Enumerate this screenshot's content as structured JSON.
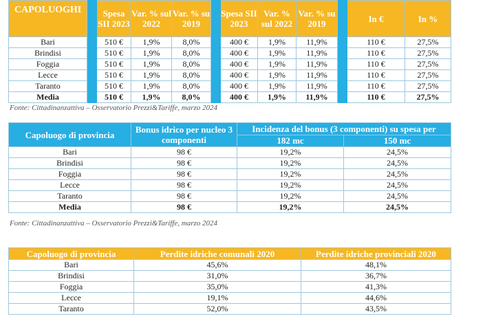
{
  "table1": {
    "headers": {
      "capoluoghi": "CAPOLUOGHI",
      "spesa2023": "Spesa SII 2023",
      "var2022": "Var. % sul 2022",
      "var2019": "Var. % su 2019",
      "spesa2023b": "Spesa SII 2023",
      "var2022b": "Var. % sul 2022",
      "var2019b": "Var. % su 2019",
      "in_euro": "In €",
      "in_pct": "In %"
    },
    "rows": [
      [
        "Bari",
        "510 €",
        "1,9%",
        "8,0%",
        "400 €",
        "1,9%",
        "11,9%",
        "110 €",
        "27,5%"
      ],
      [
        "Brindisi",
        "510 €",
        "1,9%",
        "8,0%",
        "400 €",
        "1,9%",
        "11,9%",
        "110 €",
        "27,5%"
      ],
      [
        "Foggia",
        "510 €",
        "1,9%",
        "8,0%",
        "400 €",
        "1,9%",
        "11,9%",
        "110 €",
        "27,5%"
      ],
      [
        "Lecce",
        "510 €",
        "1,9%",
        "8,0%",
        "400 €",
        "1,9%",
        "11,9%",
        "110 €",
        "27,5%"
      ],
      [
        "Taranto",
        "510 €",
        "1,9%",
        "8,0%",
        "400 €",
        "1,9%",
        "11,9%",
        "110 €",
        "27,5%"
      ],
      [
        "Media",
        "510 €",
        "1,9%",
        "8,0%",
        "400 €",
        "1,9%",
        "11,9%",
        "110 €",
        "27,5%"
      ]
    ],
    "source": "Fonte: Cittadinanzattiva – Osservatorio Prezzi&Tariffe, marzo 2024"
  },
  "table2": {
    "headers": {
      "capoluogo": "Capoluogo di provincia",
      "bonus": "Bonus idrico per nucleo 3 componenti",
      "incidenza": "Incidenza del bonus (3 componenti) su spesa per",
      "mc182": "182 mc",
      "mc150": "150 mc"
    },
    "rows": [
      [
        "Bari",
        "98 €",
        "19,2%",
        "24,5%"
      ],
      [
        "Brindisi",
        "98 €",
        "19,2%",
        "24,5%"
      ],
      [
        "Foggia",
        "98 €",
        "19,2%",
        "24,5%"
      ],
      [
        "Lecce",
        "98 €",
        "19,2%",
        "24,5%"
      ],
      [
        "Taranto",
        "98 €",
        "19,2%",
        "24,5%"
      ],
      [
        "Media",
        "98 €",
        "19,2%",
        "24,5%"
      ]
    ],
    "source": "Fonte: Cittadinanzattiva – Osservatorio Prezzi&Tariffe, marzo 2024"
  },
  "table3": {
    "headers": {
      "capoluogo": "Capoluogo di provincia",
      "comunali": "Perdite idriche comunali 2020",
      "provinciali": "Perdite idriche provinciali 2020"
    },
    "rows": [
      [
        "Bari",
        "45,6%",
        "48,1%"
      ],
      [
        "Brindisi",
        "31,0%",
        "36,7%"
      ],
      [
        "Foggia",
        "35,0%",
        "41,3%"
      ],
      [
        "Lecce",
        "19,1%",
        "44,6%"
      ],
      [
        "Taranto",
        "52,0%",
        "43,5%"
      ]
    ]
  }
}
